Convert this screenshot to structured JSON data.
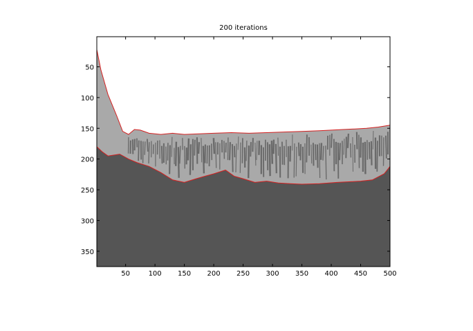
{
  "figure": {
    "title": "200 iterations"
  },
  "chart_data": {
    "type": "heatmap",
    "title": "200 iterations",
    "xlim": [
      1,
      500
    ],
    "ylim": [
      1,
      375
    ],
    "y_reversed": true,
    "x_ticks": [
      50,
      100,
      150,
      200,
      250,
      300,
      350,
      400,
      450,
      500
    ],
    "x_tick_labels": [
      "50",
      "100",
      "150",
      "200",
      "250",
      "300",
      "350",
      "400",
      "450",
      "500"
    ],
    "y_ticks": [
      50,
      100,
      150,
      200,
      250,
      300,
      350
    ],
    "y_tick_labels": [
      "50",
      "100",
      "150",
      "200",
      "250",
      "300",
      "350"
    ],
    "colors": {
      "background_region": "#ffffff",
      "mid_region": "#a9a9a9",
      "dark_region": "#555555",
      "contour": "#d42020"
    },
    "top_contour": [
      [
        1,
        22
      ],
      [
        8,
        55
      ],
      [
        20,
        95
      ],
      [
        35,
        130
      ],
      [
        45,
        155
      ],
      [
        55,
        160
      ],
      [
        65,
        152
      ],
      [
        75,
        153
      ],
      [
        90,
        158
      ],
      [
        110,
        160
      ],
      [
        130,
        158
      ],
      [
        150,
        160
      ],
      [
        175,
        159
      ],
      [
        200,
        158
      ],
      [
        230,
        157
      ],
      [
        260,
        158
      ],
      [
        290,
        157
      ],
      [
        320,
        156
      ],
      [
        350,
        155
      ],
      [
        380,
        154
      ],
      [
        400,
        153
      ],
      [
        420,
        152
      ],
      [
        440,
        151
      ],
      [
        460,
        150
      ],
      [
        480,
        148
      ],
      [
        500,
        145
      ]
    ],
    "bottom_contour": [
      [
        1,
        180
      ],
      [
        10,
        188
      ],
      [
        20,
        195
      ],
      [
        40,
        192
      ],
      [
        55,
        200
      ],
      [
        70,
        206
      ],
      [
        90,
        212
      ],
      [
        110,
        222
      ],
      [
        130,
        234
      ],
      [
        150,
        238
      ],
      [
        170,
        232
      ],
      [
        185,
        228
      ],
      [
        200,
        224
      ],
      [
        220,
        218
      ],
      [
        235,
        228
      ],
      [
        250,
        232
      ],
      [
        270,
        238
      ],
      [
        290,
        236
      ],
      [
        310,
        239
      ],
      [
        330,
        240
      ],
      [
        350,
        241
      ],
      [
        380,
        240
      ],
      [
        410,
        238
      ],
      [
        430,
        237
      ],
      [
        450,
        236
      ],
      [
        470,
        234
      ],
      [
        490,
        224
      ],
      [
        500,
        212
      ]
    ]
  }
}
